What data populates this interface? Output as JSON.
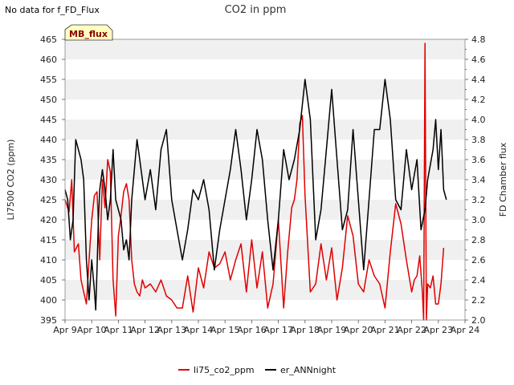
{
  "notice": "No data for f_FD_Flux",
  "badge": "MB_flux",
  "colors": {
    "co2": "#e00000",
    "ann": "#000000",
    "badge_bg": "#ffffc0",
    "badge_text": "#8b0000",
    "band": "#f0f0f0"
  },
  "chart_data": {
    "type": "line",
    "title": "CO2 in ppm",
    "xlabel": "",
    "ylabel": "LI7500 CO2 (ppm)",
    "y2label": "FD Chamber flux",
    "xlim": [
      9,
      24
    ],
    "ylim": [
      395,
      465
    ],
    "y2lim": [
      2.0,
      4.8
    ],
    "x_ticks": [
      9,
      10,
      11,
      12,
      13,
      14,
      15,
      16,
      17,
      18,
      19,
      20,
      21,
      22,
      23,
      24
    ],
    "x_tick_labels": [
      "Apr 9",
      "Apr 10",
      "Apr 11",
      "Apr 12",
      "Apr 13",
      "Apr 14",
      "Apr 15",
      "Apr 16",
      "Apr 17",
      "Apr 18",
      "Apr 19",
      "Apr 20",
      "Apr 21",
      "Apr 22",
      "Apr 23",
      "Apr 24"
    ],
    "y_ticks": [
      395,
      400,
      405,
      410,
      415,
      420,
      425,
      430,
      435,
      440,
      445,
      450,
      455,
      460,
      465
    ],
    "y2_ticks": [
      2.0,
      2.2,
      2.4,
      2.6,
      2.8,
      3.0,
      3.2,
      3.4,
      3.6,
      3.8,
      4.0,
      4.2,
      4.4,
      4.6,
      4.8
    ],
    "grid": "horizontal bands",
    "legend_position": "bottom-center",
    "series": [
      {
        "name": "li75_co2_ppm",
        "axis": "left",
        "color": "#e00000",
        "x": [
          9.0,
          9.15,
          9.25,
          9.35,
          9.5,
          9.6,
          9.7,
          9.8,
          9.9,
          10.0,
          10.1,
          10.2,
          10.3,
          10.4,
          10.5,
          10.6,
          10.7,
          10.8,
          10.9,
          11.0,
          11.1,
          11.2,
          11.3,
          11.4,
          11.5,
          11.6,
          11.7,
          11.8,
          11.9,
          12.0,
          12.2,
          12.4,
          12.6,
          12.8,
          13.0,
          13.2,
          13.4,
          13.6,
          13.8,
          14.0,
          14.2,
          14.4,
          14.6,
          14.8,
          15.0,
          15.2,
          15.4,
          15.6,
          15.8,
          16.0,
          16.2,
          16.4,
          16.6,
          16.8,
          17.0,
          17.2,
          17.35,
          17.5,
          17.6,
          17.7,
          17.8,
          17.9,
          18.0,
          18.2,
          18.4,
          18.6,
          18.8,
          19.0,
          19.2,
          19.4,
          19.6,
          19.8,
          20.0,
          20.2,
          20.4,
          20.6,
          20.8,
          21.0,
          21.2,
          21.4,
          21.6,
          21.8,
          22.0,
          22.1,
          22.2,
          22.3,
          22.4,
          22.45,
          22.5,
          22.55,
          22.6,
          22.7,
          22.8,
          22.9,
          23.0,
          23.1,
          23.2
        ],
        "values": [
          425,
          422,
          430,
          412,
          414,
          405,
          402,
          399,
          410,
          420,
          426,
          427,
          410,
          430,
          423,
          435,
          432,
          405,
          396,
          416,
          421,
          427,
          429,
          425,
          410,
          404,
          402,
          401,
          405,
          403,
          404,
          402,
          405,
          401,
          400,
          398,
          398,
          406,
          397,
          408,
          403,
          412,
          408,
          409,
          412,
          405,
          410,
          414,
          402,
          415,
          403,
          412,
          398,
          404,
          420,
          398,
          412,
          423,
          425,
          430,
          444,
          446,
          426,
          402,
          404,
          414,
          405,
          413,
          400,
          408,
          421,
          416,
          404,
          402,
          410,
          406,
          404,
          398,
          412,
          424,
          419,
          410,
          402,
          405,
          406,
          411,
          402,
          395,
          464,
          395,
          404,
          403,
          406,
          399,
          399,
          404,
          413
        ]
      },
      {
        "name": "er_ANNnight",
        "axis": "right",
        "color": "#000000",
        "x": [
          9.0,
          9.1,
          9.2,
          9.3,
          9.4,
          9.5,
          9.6,
          9.7,
          9.8,
          9.9,
          10.0,
          10.1,
          10.15,
          10.2,
          10.25,
          10.3,
          10.4,
          10.5,
          10.6,
          10.7,
          10.8,
          10.9,
          11.0,
          11.1,
          11.2,
          11.3,
          11.4,
          11.5,
          11.6,
          11.7,
          11.8,
          11.9,
          12.0,
          12.2,
          12.4,
          12.6,
          12.8,
          13.0,
          13.2,
          13.4,
          13.6,
          13.8,
          14.0,
          14.2,
          14.4,
          14.6,
          14.8,
          15.0,
          15.2,
          15.4,
          15.6,
          15.8,
          16.0,
          16.2,
          16.4,
          16.6,
          16.8,
          17.0,
          17.2,
          17.4,
          17.6,
          17.8,
          18.0,
          18.2,
          18.4,
          18.6,
          18.8,
          19.0,
          19.2,
          19.4,
          19.6,
          19.8,
          20.0,
          20.2,
          20.4,
          20.6,
          20.8,
          21.0,
          21.2,
          21.4,
          21.6,
          21.8,
          22.0,
          22.2,
          22.35,
          22.5,
          22.6,
          22.8,
          22.9,
          23.0,
          23.1,
          23.2,
          23.3
        ],
        "values": [
          3.3,
          3.2,
          2.8,
          3.0,
          3.8,
          3.7,
          3.6,
          3.4,
          2.6,
          2.2,
          2.6,
          2.3,
          2.1,
          2.5,
          3.0,
          3.3,
          3.5,
          3.3,
          3.0,
          3.2,
          3.7,
          3.2,
          3.1,
          3.0,
          2.7,
          2.8,
          2.6,
          3.2,
          3.5,
          3.8,
          3.6,
          3.4,
          3.2,
          3.5,
          3.1,
          3.7,
          3.9,
          3.2,
          2.9,
          2.6,
          2.9,
          3.3,
          3.2,
          3.4,
          3.1,
          2.5,
          2.9,
          3.2,
          3.5,
          3.9,
          3.5,
          3.0,
          3.4,
          3.9,
          3.6,
          3.0,
          2.5,
          3.0,
          3.7,
          3.4,
          3.6,
          3.9,
          4.4,
          4.0,
          2.8,
          3.1,
          3.7,
          4.3,
          3.6,
          2.9,
          3.1,
          3.9,
          3.2,
          2.5,
          3.2,
          3.9,
          3.9,
          4.4,
          4.0,
          3.2,
          3.1,
          3.7,
          3.3,
          3.6,
          2.9,
          3.1,
          3.4,
          3.7,
          4.0,
          3.5,
          3.9,
          3.3,
          3.2
        ]
      }
    ]
  }
}
